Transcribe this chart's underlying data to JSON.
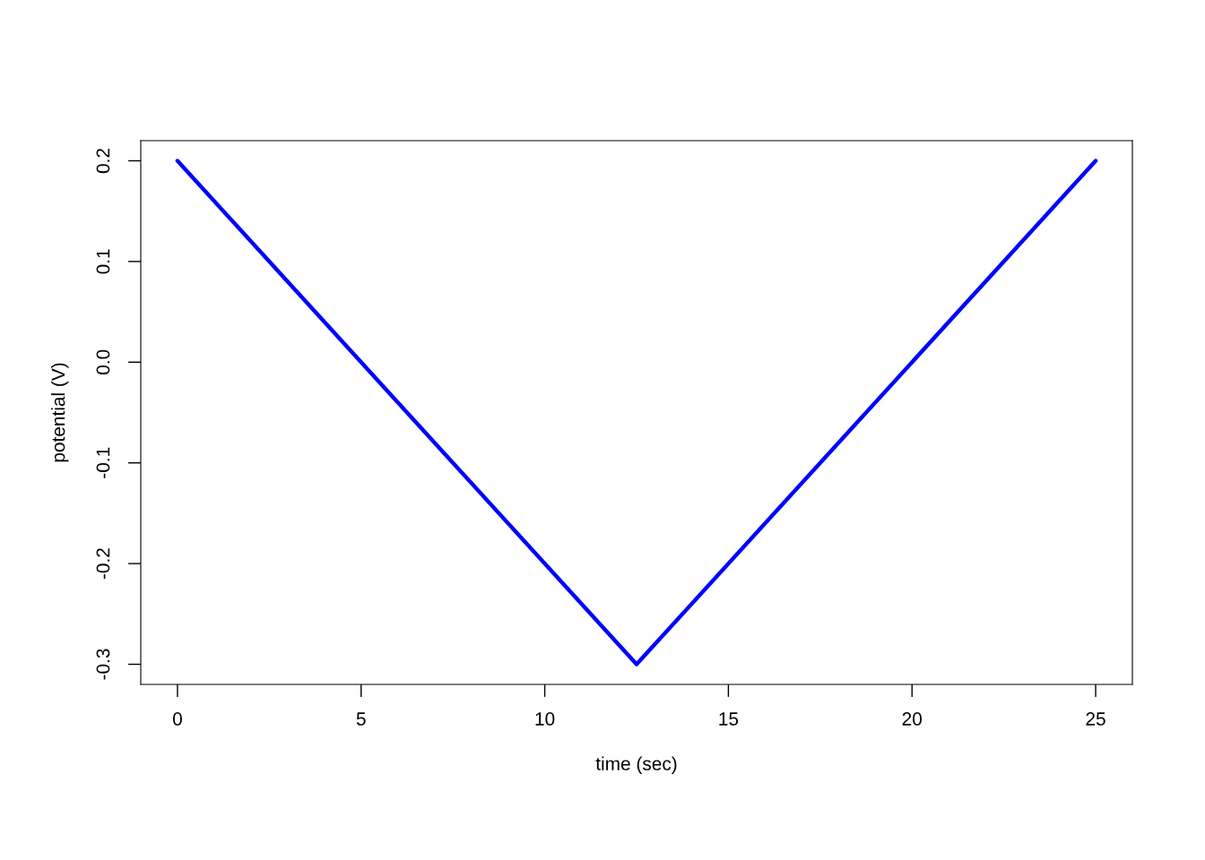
{
  "chart_data": {
    "type": "line",
    "xlabel": "time (sec)",
    "ylabel": "potential (V)",
    "series": [
      {
        "color": "#0000ff",
        "x": [
          0,
          12.5,
          25
        ],
        "values": [
          0.2,
          -0.3,
          0.2
        ]
      }
    ],
    "xlim": [
      -1,
      26
    ],
    "ylim": [
      -0.32,
      0.22
    ],
    "xticks": [
      0,
      5,
      10,
      15,
      20,
      25
    ],
    "yticks": [
      {
        "value": 0.2,
        "label": "0.2"
      },
      {
        "value": 0.1,
        "label": "0.1"
      },
      {
        "value": 0.0,
        "label": "0.0"
      },
      {
        "value": -0.1,
        "label": "-0.1"
      },
      {
        "value": -0.2,
        "label": "-0.2"
      },
      {
        "value": -0.3,
        "label": "-0.3"
      }
    ],
    "grid": false,
    "legend": false,
    "marker": "none",
    "line_style": "solid"
  }
}
